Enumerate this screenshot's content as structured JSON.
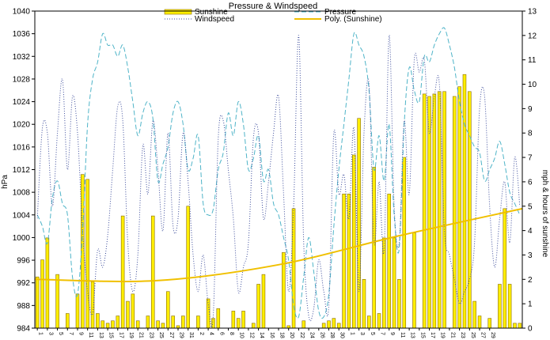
{
  "chart_data": {
    "type": "bar",
    "title": "Pressure & Windspeed",
    "ylabel_left": "hPa",
    "ylabel_right": "mph & hours of sunshine",
    "ylim_left": [
      984,
      1040
    ],
    "yticks_left": [
      984,
      988,
      992,
      996,
      1000,
      1004,
      1008,
      1012,
      1016,
      1020,
      1024,
      1028,
      1032,
      1036,
      1040
    ],
    "ylim_right": [
      0,
      13
    ],
    "yticks_right": [
      0,
      1,
      2,
      3,
      4,
      5,
      6,
      7,
      8,
      9,
      10,
      11,
      12,
      13
    ],
    "x_tick_labels": [
      "1",
      "3",
      "5",
      "7",
      "9",
      "11",
      "13",
      "15",
      "17",
      "19",
      "21",
      "23",
      "25",
      "27",
      "29",
      "31",
      "2",
      "4",
      "6",
      "8",
      "10",
      "12",
      "14",
      "16",
      "18",
      "20",
      "22",
      "24",
      "26",
      "28",
      "30",
      "1",
      "3",
      "5",
      "7",
      "9",
      "11",
      "13",
      "15",
      "17",
      "19",
      "21",
      "23",
      "25",
      "27",
      "29"
    ],
    "legend": [
      "Sunshine",
      "Windspeed",
      "Pressure",
      "Poly. (Sunshine)"
    ],
    "legend_position": "top",
    "colors": {
      "sunshine_fill": "#ffee00",
      "sunshine_edge": "#8a6d00",
      "pressure": "#4fb4c8",
      "windspeed": "#3a4a9a",
      "trend": "#f0c000",
      "grid": "#000000"
    },
    "series": [
      {
        "name": "Sunshine",
        "kind": "bar",
        "axis": "right",
        "values": [
          2.1,
          2.8,
          3.7,
          0,
          2.2,
          0,
          0.6,
          0,
          1.4,
          6.3,
          6.1,
          1.9,
          0.6,
          0.3,
          0.2,
          0.3,
          0.5,
          4.6,
          1.1,
          1.4,
          0.3,
          0,
          0.5,
          4.6,
          0.3,
          0.2,
          1.5,
          0.5,
          0.1,
          0.5,
          5.0,
          0,
          0.5,
          0,
          1.2,
          0.4,
          0.8,
          0,
          0,
          0.7,
          0.4,
          0.7,
          0,
          0.2,
          1.8,
          2.2,
          0,
          0,
          0,
          3.1,
          0.1,
          4.9,
          0,
          0.3,
          0,
          0,
          0,
          0.2,
          0.3,
          0.4,
          0.2,
          5.5,
          5.5,
          7.1,
          8.6,
          2.0,
          0.5,
          6.6,
          0.6,
          3.7,
          5.5,
          3.7,
          2.0,
          7.0,
          0,
          3.9,
          0,
          9.6,
          9.5,
          9.6,
          9.7,
          9.7,
          0,
          9.5,
          9.9,
          10.4,
          9.7,
          1.1,
          0.5,
          0,
          0.4,
          0,
          1.8,
          4.9,
          1.8,
          0.2,
          0.2
        ]
      },
      {
        "name": "Pressure",
        "kind": "line",
        "axis": "left",
        "values": [
          1004,
          1002,
          999,
          1007,
          1010,
          1006,
          1004,
          993,
          990,
          1001,
          1020,
          1028,
          1031,
          1036,
          1034,
          1034,
          1032,
          1034,
          1030,
          1024,
          1018,
          1022,
          1024,
          1021,
          1010,
          1013,
          1016,
          1022,
          1024,
          1020,
          1012,
          1014,
          1018,
          1006,
          1004,
          1005,
          1012,
          1015,
          1022,
          1018,
          1024,
          1020,
          1012,
          1014,
          1018,
          1010,
          1012,
          1006,
          1004,
          1000,
          996,
          988,
          986,
          993,
          1000,
          994,
          987,
          986,
          990,
          1002,
          1012,
          1020,
          1028,
          1036,
          1034,
          1032,
          1026,
          1012,
          1018,
          1010,
          1020,
          1004,
          998,
          1020,
          1030,
          1026,
          1024,
          1032,
          1031,
          1034,
          1036,
          1037,
          1034,
          1030,
          1024,
          1020,
          1018,
          1016,
          1015,
          1010,
          1012,
          1014,
          1017,
          1013,
          1008,
          1006,
          1004
        ]
      },
      {
        "name": "Windspeed",
        "kind": "line",
        "axis": "right",
        "values": [
          4.5,
          8.2,
          8.0,
          5.0,
          8.0,
          10.2,
          6.5,
          9.5,
          8.0,
          4.0,
          1.5,
          0.6,
          3.2,
          2.5,
          3.8,
          6.5,
          9.1,
          8.5,
          3.5,
          1.5,
          3.0,
          7.5,
          5.5,
          8.5,
          6.5,
          4.0,
          8.0,
          4.2,
          4.5,
          8.0,
          6.0,
          3.0,
          1.5,
          3.0,
          1.0,
          0.5,
          7.8,
          8.5,
          6.5,
          4.5,
          1.5,
          2.5,
          3.5,
          7.8,
          8.0,
          4.5,
          6.0,
          8.0,
          9.5,
          5.5,
          1.5,
          5.0,
          12.0,
          3.5,
          0.5,
          0.8,
          2.8,
          1.5,
          0.9,
          8.0,
          5.5,
          6.3,
          4.5,
          8.2,
          1.5,
          8.0,
          10.0,
          3.5,
          6.0,
          3.2,
          12.0,
          5.0,
          3.5,
          8.5,
          5.5,
          11.0,
          10.5,
          11.0,
          8.0,
          9.5,
          10.0,
          4.0,
          3.0,
          2.0,
          1.0,
          1.5,
          2.0,
          3.5,
          9.0,
          9.5,
          5.0,
          2.5,
          4.5,
          6.0,
          3.5,
          7.0,
          5.0
        ]
      }
    ],
    "trend": {
      "name": "Poly. (Sunshine)",
      "kind": "polynomial",
      "axis": "right",
      "x_frac": [
        0,
        0.25,
        0.5,
        0.75,
        1
      ],
      "values": [
        2.0,
        1.95,
        2.6,
        3.8,
        4.9
      ]
    }
  }
}
